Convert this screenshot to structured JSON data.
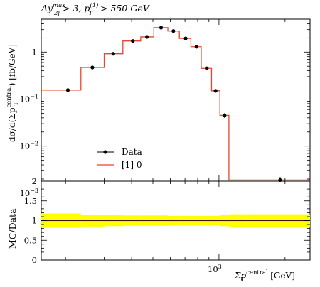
{
  "header": {
    "cut_prefix": "Δy",
    "cut_sub": "2j",
    "cut_sup": "max",
    "cut_mid": " > 3, p",
    "cut_mid_sup": "(1)",
    "cut_mid_sub": "T",
    "cut_suffix": " > 550 GeV"
  },
  "chart_data": [
    {
      "type": "line",
      "panel": "main",
      "ylabel_parts": [
        "dσ/d(Σp",
        "central",
        "T",
        ") [fb/GeV]"
      ],
      "yscale": "log",
      "ylim": [
        0.0018,
        5.0
      ],
      "xscale": "log",
      "xlim": [
        155,
        2600
      ],
      "y_tick_labels": [
        {
          "value": 1,
          "label": "1"
        },
        {
          "value": 0.1,
          "label": "10",
          "exp": "−1"
        },
        {
          "value": 0.01,
          "label": "10",
          "exp": "−2"
        },
        {
          "value": 0.001,
          "label": "10",
          "exp": "−3"
        }
      ],
      "legend": {
        "placement": "bottom-left",
        "entries": [
          "Data",
          "[1] 0"
        ]
      },
      "series": [
        {
          "name": "Data",
          "style": "points",
          "color": "#000000",
          "x": [
            205,
            265,
            330,
            405,
            470,
            545,
            620,
            705,
            790,
            880,
            965,
            1060,
            1160,
            1270,
            1900
          ],
          "y": [
            0.155,
            0.47,
            0.92,
            1.72,
            2.1,
            3.3,
            2.8,
            1.95,
            1.3,
            0.45,
            0.15,
            0.045,
            0.0019,
            0.0019,
            0.0019
          ],
          "yerr": [
            0.025,
            0.04,
            0.07,
            0.14,
            0.17,
            0.28,
            0.22,
            0.15,
            0.1,
            0.04,
            0.012,
            0.005,
            0.0003,
            0.0003,
            0.0003
          ]
        },
        {
          "name": "[1] 0",
          "style": "step",
          "color": "#e8452c",
          "edges": [
            155,
            235,
            300,
            365,
            440,
            505,
            585,
            660,
            745,
            830,
            925,
            1010,
            1110,
            1215,
            1350,
            2600
          ],
          "values": [
            0.155,
            0.47,
            0.92,
            1.72,
            2.1,
            3.3,
            2.8,
            1.95,
            1.3,
            0.45,
            0.15,
            0.045,
            0.0019,
            0.0019,
            0.0019
          ]
        }
      ]
    },
    {
      "type": "area",
      "panel": "ratio",
      "ylabel": "MC/Data",
      "xlabel_parts": [
        "Σp",
        "central",
        "T",
        " [GeV]"
      ],
      "x_tick_labels": [
        {
          "value": 1000,
          "label": "10",
          "exp": "3"
        }
      ],
      "ylim": [
        0,
        2
      ],
      "y_tick_labels": [
        {
          "value": 0,
          "label": "0"
        },
        {
          "value": 0.5,
          "label": "0.5"
        },
        {
          "value": 1,
          "label": "1"
        },
        {
          "value": 1.5,
          "label": "1.5"
        },
        {
          "value": 2,
          "label": "2"
        }
      ],
      "band_color": "#ffff00",
      "line_color": "#e8452c",
      "edges": [
        155,
        235,
        300,
        365,
        440,
        505,
        585,
        660,
        745,
        830,
        925,
        1010,
        1110,
        1215,
        1350,
        2600
      ],
      "band_low": [
        0.82,
        0.85,
        0.86,
        0.87,
        0.87,
        0.87,
        0.88,
        0.88,
        0.88,
        0.88,
        0.88,
        0.86,
        0.84,
        0.84,
        0.84
      ],
      "band_high": [
        1.18,
        1.15,
        1.14,
        1.13,
        1.13,
        1.13,
        1.12,
        1.12,
        1.12,
        1.12,
        1.12,
        1.14,
        1.16,
        1.16,
        1.16
      ],
      "ratio": [
        1,
        1,
        1,
        1,
        1,
        1,
        1,
        1,
        1,
        1,
        1,
        1,
        1,
        1,
        1
      ]
    }
  ]
}
